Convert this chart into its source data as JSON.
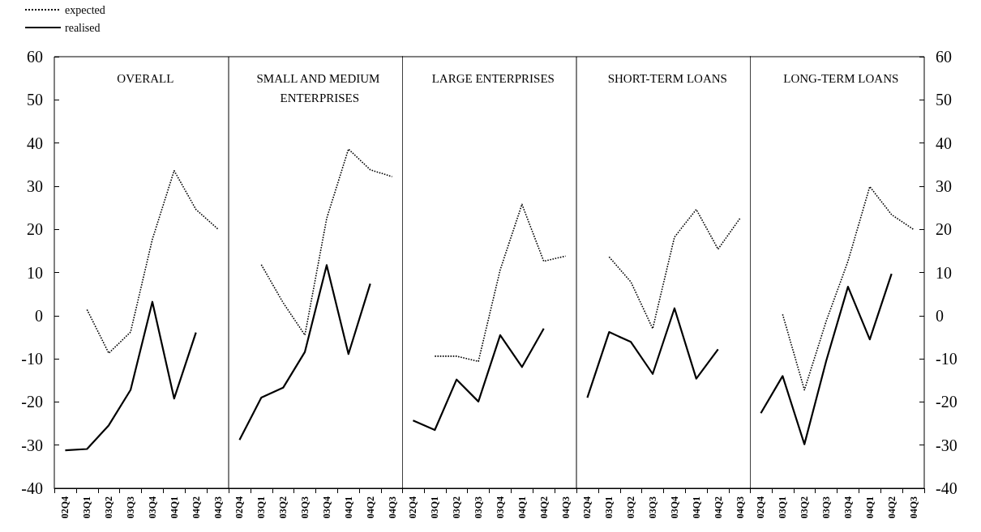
{
  "chart_data": [
    {
      "type": "line",
      "title": "OVERALL",
      "categories": [
        "02Q4",
        "03Q1",
        "03Q2",
        "03Q3",
        "03Q4",
        "04Q1",
        "04Q2",
        "04Q3"
      ],
      "ylim": [
        -40,
        60
      ],
      "yticks": [
        -40,
        -30,
        -20,
        -10,
        0,
        10,
        20,
        30,
        40,
        50,
        60
      ],
      "grid": false,
      "legend": "top left",
      "marker": "none",
      "series": [
        {
          "name": "expected",
          "color": "#000000",
          "line_style": "dotted",
          "values": [
            null,
            1.4,
            -8.7,
            -3.8,
            17.7,
            33.6,
            24.6,
            20.1
          ]
        },
        {
          "name": "realised",
          "color": "#000000",
          "line_style": "solid",
          "values": [
            -31.2,
            -30.9,
            -25.4,
            -17.2,
            3.2,
            -19.2,
            -3.9,
            null
          ]
        }
      ]
    },
    {
      "type": "line",
      "title": "SMALL AND MEDIUM ENTERPRISES",
      "categories": [
        "02Q4",
        "03Q1",
        "03Q2",
        "03Q3",
        "03Q4",
        "04Q1",
        "04Q2",
        "04Q3"
      ],
      "ylim": [
        -40,
        60
      ],
      "yticks": [
        -40,
        -30,
        -20,
        -10,
        0,
        10,
        20,
        30,
        40,
        50,
        60
      ],
      "tick_labels": "x",
      "grid": false,
      "marker": "none",
      "series": [
        {
          "color": "#000000",
          "line_style": "dotted",
          "values": [
            null,
            11.8,
            3.0,
            -4.5,
            22.5,
            38.6,
            33.8,
            32.2
          ]
        },
        {
          "color": "#000000",
          "line_style": "solid",
          "values": [
            -28.8,
            -19.0,
            -16.7,
            -8.4,
            11.7,
            -8.9,
            7.4,
            null
          ]
        }
      ]
    },
    {
      "type": "line",
      "title": "LARGE ENTERPRISES",
      "categories": [
        "02Q4",
        "03Q1",
        "03Q2",
        "03Q3",
        "03Q4",
        "04Q1",
        "04Q2",
        "04Q3"
      ],
      "ylim": [
        -40,
        60
      ],
      "yticks": [
        -40,
        -30,
        -20,
        -10,
        0,
        10,
        20,
        30,
        40,
        50,
        60
      ],
      "tick_labels": "x",
      "grid": false,
      "marker": "none",
      "series": [
        {
          "color": "#000000",
          "line_style": "dotted",
          "values": [
            null,
            -9.4,
            -9.4,
            -10.6,
            10.6,
            25.8,
            12.6,
            13.8
          ]
        },
        {
          "color": "#000000",
          "line_style": "solid",
          "values": [
            -24.3,
            -26.5,
            -14.8,
            -19.9,
            -4.5,
            -11.9,
            -3.0,
            null
          ]
        }
      ]
    },
    {
      "type": "line",
      "title": "SHORT-TERM LOANS",
      "categories": [
        "02Q4",
        "03Q1",
        "03Q2",
        "03Q3",
        "03Q4",
        "04Q1",
        "04Q2",
        "04Q3"
      ],
      "ylim": [
        -40,
        60
      ],
      "yticks": [
        -40,
        -30,
        -20,
        -10,
        0,
        10,
        20,
        30,
        40,
        50,
        60
      ],
      "tick_labels": "x",
      "grid": false,
      "marker": "none",
      "series": [
        {
          "color": "#000000",
          "line_style": "dotted",
          "values": [
            null,
            13.6,
            7.8,
            -3.0,
            18.2,
            24.6,
            15.4,
            22.5
          ]
        },
        {
          "color": "#000000",
          "line_style": "solid",
          "values": [
            -19.0,
            -3.8,
            -6.1,
            -13.5,
            1.7,
            -14.6,
            -7.8,
            null
          ]
        }
      ]
    },
    {
      "type": "line",
      "title": "LONG-TERM LOANS",
      "categories": [
        "02Q4",
        "03Q1",
        "03Q2",
        "03Q3",
        "03Q4",
        "04Q1",
        "04Q2",
        "04Q3"
      ],
      "y2lim": [
        -40,
        60
      ],
      "y2ticks": [
        -40,
        -30,
        -20,
        -10,
        0,
        10,
        20,
        30,
        40,
        50,
        60
      ],
      "grid": false,
      "marker": "none",
      "series": [
        {
          "color": "#000000",
          "line_style": "dotted",
          "axis": "y2",
          "values": [
            null,
            0.3,
            -17.2,
            -1.3,
            12.6,
            29.9,
            23.4,
            20.0
          ]
        },
        {
          "color": "#000000",
          "line_style": "solid",
          "axis": "y2",
          "values": [
            -22.6,
            -14.0,
            -29.8,
            -10.5,
            6.7,
            -5.5,
            9.7,
            null
          ]
        }
      ]
    }
  ]
}
